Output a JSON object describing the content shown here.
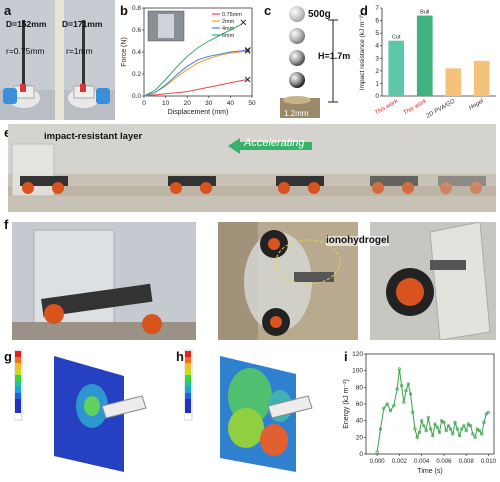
{
  "labels": {
    "a": "a",
    "b": "b",
    "c": "c",
    "d": "d",
    "e": "e",
    "f": "f",
    "g": "g",
    "h": "h",
    "i": "i"
  },
  "panel_a": {
    "left_d": "D=152mm",
    "left_r": "r=0.75mm",
    "right_d": "D=171mm",
    "right_r": "r=1mm"
  },
  "panel_c": {
    "mass": "500g",
    "height": "H=1.7m",
    "thickness": "1.2mm"
  },
  "panel_e": {
    "layer_label": "impact-resistant layer",
    "accel_label": "Accelerating"
  },
  "panel_f": {
    "gel_label": "ionohydrogel"
  },
  "chart_b": {
    "type": "line",
    "xlabel": "Displacement (mm)",
    "ylabel": "Force (N)",
    "xlim": [
      0,
      50
    ],
    "ylim": [
      0,
      0.8
    ],
    "xticks": [
      0,
      10,
      20,
      30,
      40,
      50
    ],
    "yticks": [
      0.0,
      0.2,
      0.4,
      0.6,
      0.8
    ],
    "legend_position": "top-right",
    "series": [
      {
        "name": "0.75mm",
        "color": "#e84a4a",
        "x": [
          0,
          5,
          10,
          15,
          20,
          25,
          30,
          35,
          40,
          45,
          48
        ],
        "y": [
          0,
          0.01,
          0.02,
          0.03,
          0.04,
          0.06,
          0.08,
          0.1,
          0.12,
          0.14,
          0.15
        ]
      },
      {
        "name": "2mm",
        "color": "#f0a030",
        "x": [
          0,
          5,
          10,
          15,
          20,
          25,
          30,
          35,
          40,
          45,
          48
        ],
        "y": [
          0,
          0.03,
          0.09,
          0.17,
          0.24,
          0.3,
          0.34,
          0.37,
          0.39,
          0.4,
          0.41
        ]
      },
      {
        "name": "4mm",
        "color": "#4a7fd4",
        "x": [
          0,
          5,
          10,
          15,
          20,
          25,
          30,
          35,
          40,
          45,
          48
        ],
        "y": [
          0,
          0.03,
          0.1,
          0.19,
          0.27,
          0.33,
          0.36,
          0.38,
          0.4,
          0.41,
          0.42
        ]
      },
      {
        "name": "6mm",
        "color": "#3aaa6a",
        "x": [
          0,
          5,
          10,
          15,
          20,
          25,
          30,
          35,
          40,
          45,
          46
        ],
        "y": [
          0,
          0.05,
          0.15,
          0.26,
          0.36,
          0.44,
          0.5,
          0.55,
          0.6,
          0.65,
          0.67
        ]
      }
    ]
  },
  "chart_d": {
    "type": "bar",
    "ylabel": "Impact resistance (kJ m⁻²)",
    "categories": [
      "This work",
      "This work",
      "2D PVA/GO",
      "Hogel"
    ],
    "values": [
      4.4,
      6.4,
      2.2,
      2.8
    ],
    "ylim": [
      0,
      7
    ],
    "colors": [
      "#5fc7a9",
      "#3fb27f",
      "#f4c27a",
      "#f4c27a"
    ],
    "bar_labels": [
      "Cut",
      "Bull",
      "",
      ""
    ],
    "category_colors": [
      "#d22",
      "#d22",
      "#333",
      "#333"
    ]
  },
  "chart_i": {
    "type": "line",
    "xlabel": "Time (s)",
    "ylabel": "Energy (kJ m⁻²)",
    "xlim": [
      -0.001,
      0.0105
    ],
    "ylim": [
      0,
      120
    ],
    "xticks": [
      "0.000",
      "0.002",
      "0.004",
      "0.006",
      "0.008",
      "0.010"
    ],
    "xtick_values": [
      0,
      0.002,
      0.004,
      0.006,
      0.008,
      0.01
    ],
    "yticks": [
      0,
      20,
      40,
      60,
      80,
      100,
      120
    ],
    "color": "#3aa04a",
    "x": [
      0,
      0.0003,
      0.0006,
      0.0009,
      0.0012,
      0.0015,
      0.0018,
      0.002,
      0.0022,
      0.0024,
      0.0026,
      0.0028,
      0.003,
      0.0032,
      0.0034,
      0.0036,
      0.0038,
      0.004,
      0.0042,
      0.0044,
      0.0046,
      0.0048,
      0.005,
      0.0052,
      0.0054,
      0.0056,
      0.0058,
      0.006,
      0.0062,
      0.0064,
      0.0066,
      0.0068,
      0.007,
      0.0072,
      0.0074,
      0.0076,
      0.0078,
      0.008,
      0.0082,
      0.0084,
      0.0086,
      0.0088,
      0.009,
      0.0092,
      0.0094,
      0.0096,
      0.0098,
      0.01
    ],
    "y": [
      2,
      30,
      55,
      60,
      52,
      58,
      78,
      102,
      82,
      62,
      76,
      84,
      72,
      50,
      30,
      20,
      26,
      40,
      34,
      28,
      44,
      30,
      22,
      36,
      32,
      26,
      40,
      38,
      28,
      34,
      30,
      24,
      38,
      30,
      22,
      30,
      34,
      28,
      36,
      34,
      24,
      20,
      30,
      28,
      24,
      38,
      48,
      50
    ]
  }
}
